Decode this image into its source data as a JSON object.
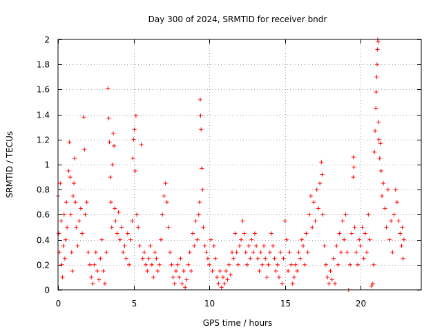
{
  "chart_data": {
    "type": "scatter",
    "title": "Day 300 of 2024, SRMTID for receiver bndr",
    "xlabel": "GPS time / hours",
    "ylabel": "SRMTID / TECUs",
    "xlim": [
      0,
      24
    ],
    "ylim": [
      0,
      2
    ],
    "x_ticks": [
      0,
      5,
      10,
      15,
      20
    ],
    "x_tick_labels": [
      "0",
      "5",
      "10",
      "15",
      "20"
    ],
    "y_ticks": [
      0,
      0.2,
      0.4,
      0.6,
      0.8,
      1,
      1.2,
      1.4,
      1.6,
      1.8,
      2
    ],
    "y_tick_labels": [
      "0",
      "0.2",
      "0.4",
      "0.6",
      "0.8",
      "1",
      "1.2",
      "1.4",
      "1.6",
      "1.8",
      "2"
    ],
    "grid": true,
    "marker": "+",
    "color": "#ff0000",
    "series": [
      {
        "name": "SRMTID",
        "points": [
          [
            0.0,
            0.75
          ],
          [
            0.05,
            0.45
          ],
          [
            0.1,
            0.3
          ],
          [
            0.15,
            0.85
          ],
          [
            0.2,
            0.55
          ],
          [
            0.25,
            0.2
          ],
          [
            0.3,
            0.1
          ],
          [
            0.35,
            0.35
          ],
          [
            0.4,
            0.6
          ],
          [
            0.45,
            0.25
          ],
          [
            0.5,
            0.4
          ],
          [
            0.55,
            0.7
          ],
          [
            0.6,
            0.5
          ],
          [
            0.7,
            0.95
          ],
          [
            0.75,
            1.18
          ],
          [
            0.8,
            0.9
          ],
          [
            0.85,
            0.6
          ],
          [
            0.9,
            0.3
          ],
          [
            0.95,
            0.15
          ],
          [
            1.0,
            0.75
          ],
          [
            1.05,
            0.85
          ],
          [
            1.1,
            1.05
          ],
          [
            1.15,
            0.7
          ],
          [
            1.2,
            0.5
          ],
          [
            1.3,
            0.35
          ],
          [
            1.4,
            0.55
          ],
          [
            1.5,
            0.65
          ],
          [
            1.6,
            0.45
          ],
          [
            1.7,
            1.38
          ],
          [
            1.75,
            1.12
          ],
          [
            1.8,
            0.6
          ],
          [
            1.9,
            0.7
          ],
          [
            2.0,
            0.3
          ],
          [
            2.1,
            0.2
          ],
          [
            2.2,
            0.1
          ],
          [
            2.3,
            0.05
          ],
          [
            2.4,
            0.2
          ],
          [
            2.5,
            0.3
          ],
          [
            2.6,
            0.15
          ],
          [
            2.7,
            0.08
          ],
          [
            2.8,
            0.25
          ],
          [
            2.9,
            0.4
          ],
          [
            3.0,
            0.15
          ],
          [
            3.1,
            0.05
          ],
          [
            3.2,
            0.3
          ],
          [
            3.3,
            1.61
          ],
          [
            3.35,
            1.37
          ],
          [
            3.4,
            1.18
          ],
          [
            3.45,
            0.9
          ],
          [
            3.5,
            0.7
          ],
          [
            3.55,
            0.5
          ],
          [
            3.6,
            1.0
          ],
          [
            3.65,
            1.25
          ],
          [
            3.7,
            1.15
          ],
          [
            3.75,
            0.65
          ],
          [
            3.8,
            0.55
          ],
          [
            3.9,
            0.45
          ],
          [
            4.0,
            0.62
          ],
          [
            4.1,
            0.4
          ],
          [
            4.2,
            0.5
          ],
          [
            4.3,
            0.3
          ],
          [
            4.4,
            0.35
          ],
          [
            4.5,
            0.25
          ],
          [
            4.6,
            0.45
          ],
          [
            4.7,
            0.2
          ],
          [
            4.8,
            0.4
          ],
          [
            4.9,
            0.55
          ],
          [
            4.95,
            1.05
          ],
          [
            5.0,
            1.2
          ],
          [
            5.05,
            1.28
          ],
          [
            5.1,
            0.95
          ],
          [
            5.15,
            1.39
          ],
          [
            5.2,
            0.6
          ],
          [
            5.3,
            0.5
          ],
          [
            5.4,
            0.35
          ],
          [
            5.5,
            1.16
          ],
          [
            5.6,
            0.25
          ],
          [
            5.7,
            0.3
          ],
          [
            5.8,
            0.2
          ],
          [
            5.9,
            0.15
          ],
          [
            6.0,
            0.25
          ],
          [
            6.1,
            0.35
          ],
          [
            6.2,
            0.2
          ],
          [
            6.3,
            0.1
          ],
          [
            6.4,
            0.3
          ],
          [
            6.5,
            0.25
          ],
          [
            6.6,
            0.15
          ],
          [
            6.7,
            0.2
          ],
          [
            6.8,
            0.4
          ],
          [
            6.9,
            0.6
          ],
          [
            7.0,
            0.75
          ],
          [
            7.1,
            0.85
          ],
          [
            7.2,
            0.7
          ],
          [
            7.3,
            0.5
          ],
          [
            7.4,
            0.3
          ],
          [
            7.5,
            0.2
          ],
          [
            7.6,
            0.1
          ],
          [
            7.7,
            0.05
          ],
          [
            7.8,
            0.15
          ],
          [
            7.9,
            0.2
          ],
          [
            8.0,
            0.1
          ],
          [
            8.1,
            0.25
          ],
          [
            8.2,
            0.05
          ],
          [
            8.3,
            0.15
          ],
          [
            8.4,
            0.02
          ],
          [
            8.5,
            0.08
          ],
          [
            8.6,
            0.2
          ],
          [
            8.7,
            0.3
          ],
          [
            8.8,
            0.15
          ],
          [
            8.9,
            0.45
          ],
          [
            9.0,
            0.35
          ],
          [
            9.1,
            0.55
          ],
          [
            9.2,
            0.4
          ],
          [
            9.3,
            0.6
          ],
          [
            9.35,
            0.7
          ],
          [
            9.4,
            1.52
          ],
          [
            9.42,
            1.39
          ],
          [
            9.45,
            1.28
          ],
          [
            9.5,
            0.97
          ],
          [
            9.55,
            0.8
          ],
          [
            9.6,
            0.5
          ],
          [
            9.7,
            0.35
          ],
          [
            9.8,
            0.3
          ],
          [
            9.9,
            0.25
          ],
          [
            10.0,
            0.2
          ],
          [
            10.1,
            0.4
          ],
          [
            10.2,
            0.15
          ],
          [
            10.3,
            0.35
          ],
          [
            10.4,
            0.25
          ],
          [
            10.5,
            0.1
          ],
          [
            10.6,
            0.05
          ],
          [
            10.7,
            0.15
          ],
          [
            10.8,
            0.02
          ],
          [
            10.9,
            0.1
          ],
          [
            11.0,
            0.05
          ],
          [
            11.1,
            0.15
          ],
          [
            11.2,
            0.08
          ],
          [
            11.3,
            0.2
          ],
          [
            11.4,
            0.12
          ],
          [
            11.5,
            0.3
          ],
          [
            11.6,
            0.25
          ],
          [
            11.7,
            0.45
          ],
          [
            11.8,
            0.3
          ],
          [
            11.9,
            0.2
          ],
          [
            12.0,
            0.35
          ],
          [
            12.1,
            0.4
          ],
          [
            12.2,
            0.55
          ],
          [
            12.3,
            0.45
          ],
          [
            12.4,
            0.3
          ],
          [
            12.5,
            0.2
          ],
          [
            12.6,
            0.35
          ],
          [
            12.7,
            0.25
          ],
          [
            12.8,
            0.4
          ],
          [
            12.9,
            0.3
          ],
          [
            13.0,
            0.45
          ],
          [
            13.1,
            0.35
          ],
          [
            13.2,
            0.25
          ],
          [
            13.3,
            0.15
          ],
          [
            13.4,
            0.3
          ],
          [
            13.5,
            0.2
          ],
          [
            13.6,
            0.35
          ],
          [
            13.7,
            0.25
          ],
          [
            13.8,
            0.1
          ],
          [
            13.9,
            0.2
          ],
          [
            14.0,
            0.3
          ],
          [
            14.1,
            0.45
          ],
          [
            14.2,
            0.35
          ],
          [
            14.3,
            0.25
          ],
          [
            14.4,
            0.15
          ],
          [
            14.5,
            0.2
          ],
          [
            14.6,
            0.1
          ],
          [
            14.7,
            0.3
          ],
          [
            14.8,
            0.05
          ],
          [
            14.9,
            0.25
          ],
          [
            15.0,
            0.55
          ],
          [
            15.1,
            0.4
          ],
          [
            15.2,
            0.15
          ],
          [
            15.3,
            0.3
          ],
          [
            15.4,
            0.2
          ],
          [
            15.5,
            0.05
          ],
          [
            15.6,
            0.1
          ],
          [
            15.7,
            0.2
          ],
          [
            15.8,
            0.15
          ],
          [
            15.9,
            0.3
          ],
          [
            16.0,
            0.25
          ],
          [
            16.1,
            0.4
          ],
          [
            16.2,
            0.35
          ],
          [
            16.3,
            0.2
          ],
          [
            16.4,
            0.45
          ],
          [
            16.5,
            0.3
          ],
          [
            16.6,
            0.6
          ],
          [
            16.7,
            0.75
          ],
          [
            16.8,
            0.5
          ],
          [
            16.9,
            0.7
          ],
          [
            17.0,
            0.55
          ],
          [
            17.1,
            0.8
          ],
          [
            17.2,
            0.65
          ],
          [
            17.3,
            0.85
          ],
          [
            17.4,
            1.02
          ],
          [
            17.45,
            0.92
          ],
          [
            17.5,
            0.6
          ],
          [
            17.6,
            0.35
          ],
          [
            17.7,
            0.2
          ],
          [
            17.8,
            0.1
          ],
          [
            17.9,
            0.05
          ],
          [
            18.0,
            0.15
          ],
          [
            18.1,
            0.08
          ],
          [
            18.2,
            0.25
          ],
          [
            18.3,
            0.05
          ],
          [
            18.4,
            0.35
          ],
          [
            18.5,
            0.2
          ],
          [
            18.6,
            0.45
          ],
          [
            18.7,
            0.3
          ],
          [
            18.8,
            0.55
          ],
          [
            18.9,
            0.4
          ],
          [
            19.0,
            0.6
          ],
          [
            19.1,
            0.3
          ],
          [
            19.2,
            0.0
          ],
          [
            19.3,
            0.2
          ],
          [
            19.4,
            0.45
          ],
          [
            19.5,
            0.9
          ],
          [
            19.52,
            1.06
          ],
          [
            19.55,
            0.98
          ],
          [
            19.6,
            0.5
          ],
          [
            19.7,
            0.3
          ],
          [
            19.8,
            0.2
          ],
          [
            19.9,
            0.4
          ],
          [
            20.0,
            0.35
          ],
          [
            20.1,
            0.5
          ],
          [
            20.2,
            0.25
          ],
          [
            20.3,
            0.45
          ],
          [
            20.4,
            0.3
          ],
          [
            20.5,
            0.6
          ],
          [
            20.6,
            0.4
          ],
          [
            20.7,
            0.03
          ],
          [
            20.8,
            0.05
          ],
          [
            20.85,
            0.2
          ],
          [
            20.9,
            1.1
          ],
          [
            20.95,
            1.27
          ],
          [
            21.0,
            1.45
          ],
          [
            21.02,
            1.58
          ],
          [
            21.05,
            1.7
          ],
          [
            21.08,
            1.8
          ],
          [
            21.1,
            1.92
          ],
          [
            21.12,
            2.0
          ],
          [
            21.15,
            1.98
          ],
          [
            21.18,
            1.34
          ],
          [
            21.2,
            1.2
          ],
          [
            21.25,
            1.05
          ],
          [
            21.3,
            1.17
          ],
          [
            21.35,
            0.95
          ],
          [
            21.4,
            0.75
          ],
          [
            21.5,
            0.85
          ],
          [
            21.6,
            0.65
          ],
          [
            21.7,
            0.5
          ],
          [
            21.8,
            0.8
          ],
          [
            21.9,
            0.4
          ],
          [
            22.0,
            0.55
          ],
          [
            22.1,
            0.3
          ],
          [
            22.2,
            0.6
          ],
          [
            22.3,
            0.8
          ],
          [
            22.4,
            0.7
          ],
          [
            22.5,
            0.55
          ],
          [
            22.6,
            0.45
          ],
          [
            22.7,
            0.35
          ],
          [
            22.75,
            0.5
          ],
          [
            22.8,
            0.25
          ],
          [
            22.85,
            0.4
          ]
        ]
      }
    ]
  }
}
